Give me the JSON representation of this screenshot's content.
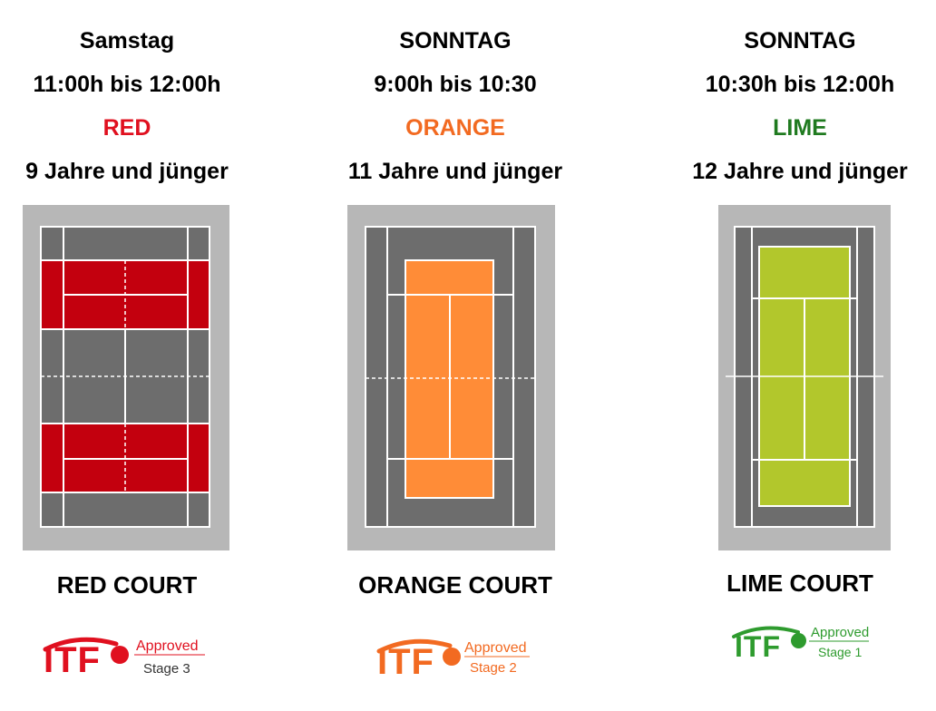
{
  "colors": {
    "red": "#e0101f",
    "orange": "#f26a21",
    "lime": "#1f7a1f"
  },
  "columns": [
    {
      "day": "Samstag",
      "time": "11:00h bis 12:00h",
      "category": "RED",
      "age": "9 Jahre und jünger",
      "court_label": "RED COURT",
      "logo": {
        "brand": "ITF",
        "approved": "Approved",
        "stage": "Stage 3",
        "color": "#e0101f"
      }
    },
    {
      "day": "SONNTAG",
      "time": "9:00h bis 10:30",
      "category": "ORANGE",
      "age": "11 Jahre und jünger",
      "court_label": "ORANGE COURT",
      "logo": {
        "brand": "ITF",
        "approved": "Approved",
        "stage": "Stage 2",
        "color": "#f26a21"
      }
    },
    {
      "day": "SONNTAG",
      "time": "10:30h bis 12:00h",
      "category": "LIME",
      "age": "12 Jahre und jünger",
      "court_label": "LIME COURT",
      "logo": {
        "brand": "ITF",
        "approved": "Approved",
        "stage": "Stage 1",
        "color": "#2e9b2e"
      }
    }
  ]
}
